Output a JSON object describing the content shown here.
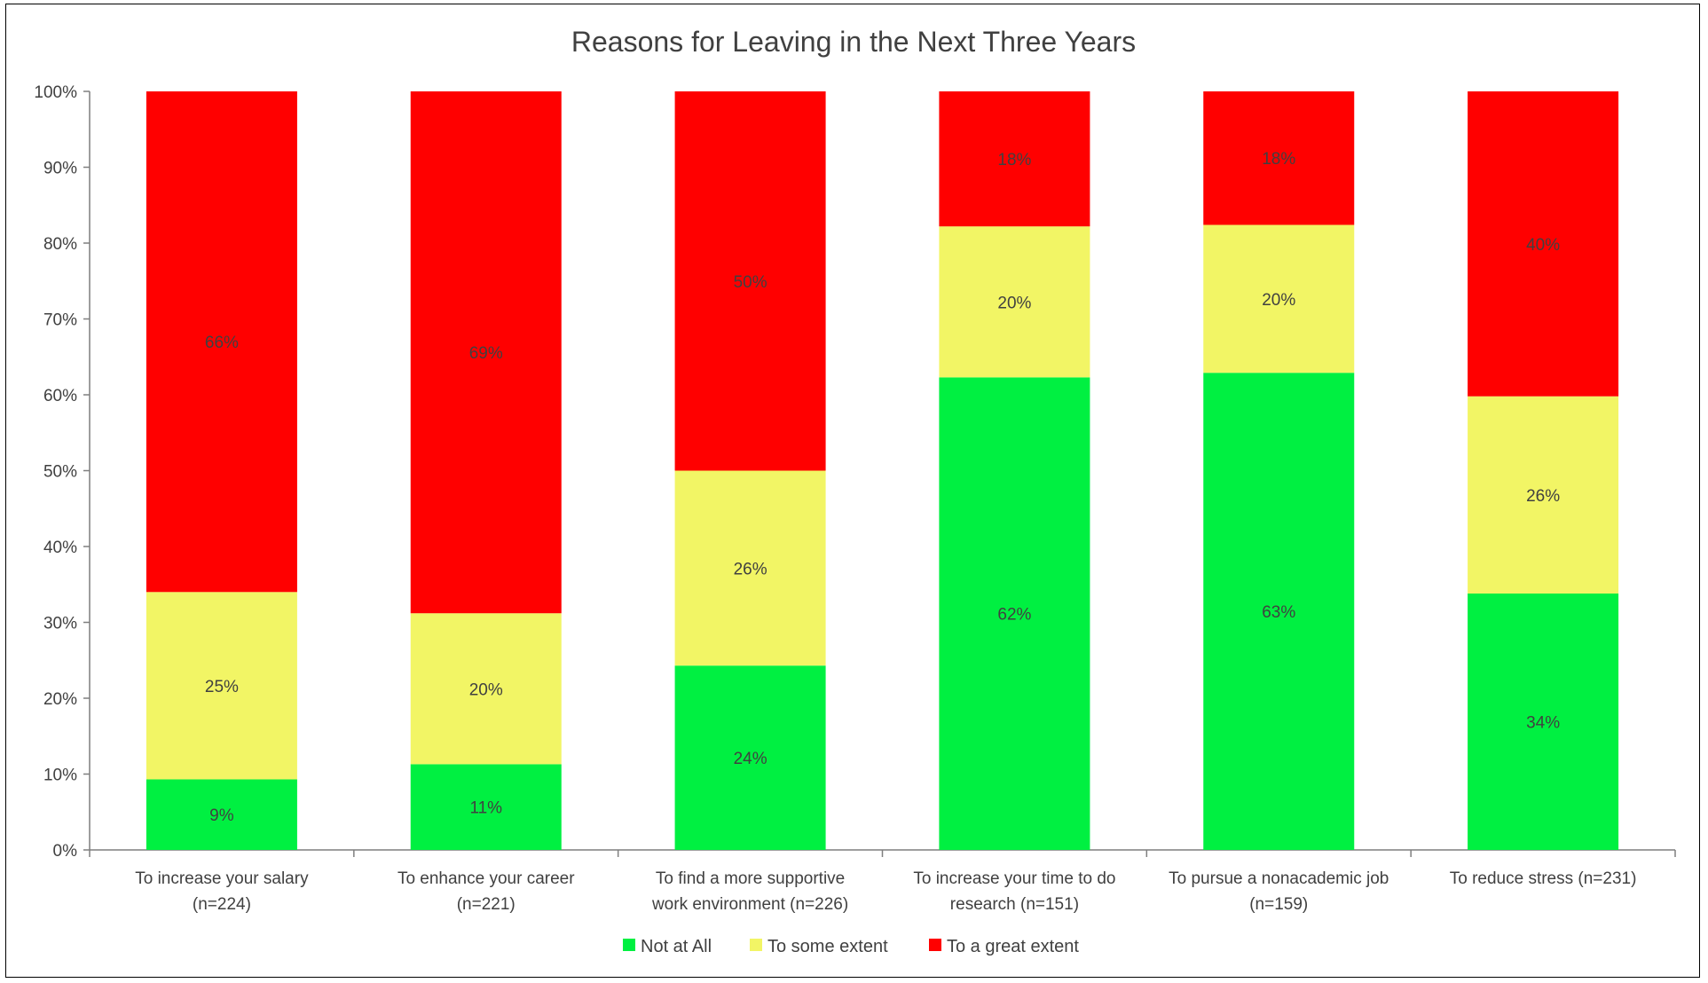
{
  "chart_data": {
    "type": "bar",
    "stacked": true,
    "title": "Reasons for Leaving in the Next Three Years",
    "xlabel": "",
    "ylabel": "",
    "ylim": [
      0,
      100
    ],
    "yticks": [
      "0%",
      "10%",
      "20%",
      "30%",
      "40%",
      "50%",
      "60%",
      "70%",
      "80%",
      "90%",
      "100%"
    ],
    "grid": false,
    "legend_position": "bottom",
    "categories": [
      [
        "To increase your salary",
        "(n=224)"
      ],
      [
        "To enhance your career",
        "(n=221)"
      ],
      [
        "To find a more supportive",
        "work environment (n=226)"
      ],
      [
        "To increase your time to do",
        "research (n=151)"
      ],
      [
        "To pursue a nonacademic job",
        "(n=159)"
      ],
      [
        "To reduce stress (n=231)"
      ]
    ],
    "series": [
      {
        "name": "Not at All",
        "color": "#00f041",
        "values": [
          9.3,
          11.3,
          24.3,
          62.3,
          62.9,
          33.8
        ],
        "labels": [
          "9%",
          "11%",
          "24%",
          "62%",
          "63%",
          "34%"
        ]
      },
      {
        "name": "To some extent",
        "color": "#f2f565",
        "values": [
          24.7,
          19.9,
          25.7,
          19.9,
          19.5,
          26.0
        ],
        "labels": [
          "25%",
          "20%",
          "26%",
          "20%",
          "20%",
          "26%"
        ]
      },
      {
        "name": "To a great extent",
        "color": "#ff0000",
        "values": [
          66.0,
          68.8,
          50.0,
          17.8,
          17.6,
          40.2
        ],
        "labels": [
          "66%",
          "69%",
          "50%",
          "18%",
          "18%",
          "40%"
        ]
      }
    ]
  }
}
